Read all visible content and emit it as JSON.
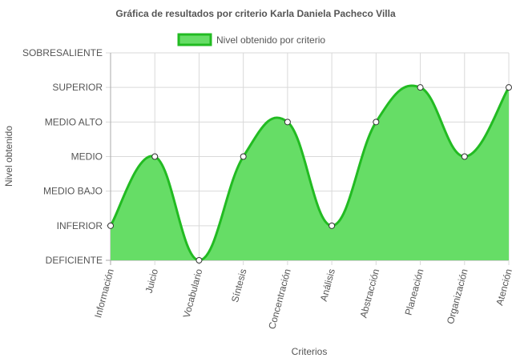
{
  "chart_data": {
    "type": "area",
    "title": "Gráfica de resultados por criterio Karla Daniela Pacheco Villa",
    "xlabel": "Criterios",
    "ylabel": "Nivel obtenido",
    "categories": [
      "Información",
      "Juicio",
      "Vocabulario",
      "Síntesis",
      "Concentración",
      "Análisis",
      "Abstracción",
      "Planeación",
      "Organización",
      "Atención"
    ],
    "levels": [
      "DEFICIENTE",
      "INFERIOR",
      "MEDIO BAJO",
      "MEDIO",
      "MEDIO ALTO",
      "SUPERIOR",
      "SOBRESALIENTE"
    ],
    "ylim": [
      0,
      6
    ],
    "grid": true,
    "legend_position": "top",
    "series": [
      {
        "name": "Nivel obtenido por criterio",
        "values": [
          1,
          3,
          0,
          3,
          4,
          1,
          4,
          5,
          3,
          5
        ],
        "fill_color": "#66dd66",
        "line_color": "#22bb22"
      }
    ]
  }
}
